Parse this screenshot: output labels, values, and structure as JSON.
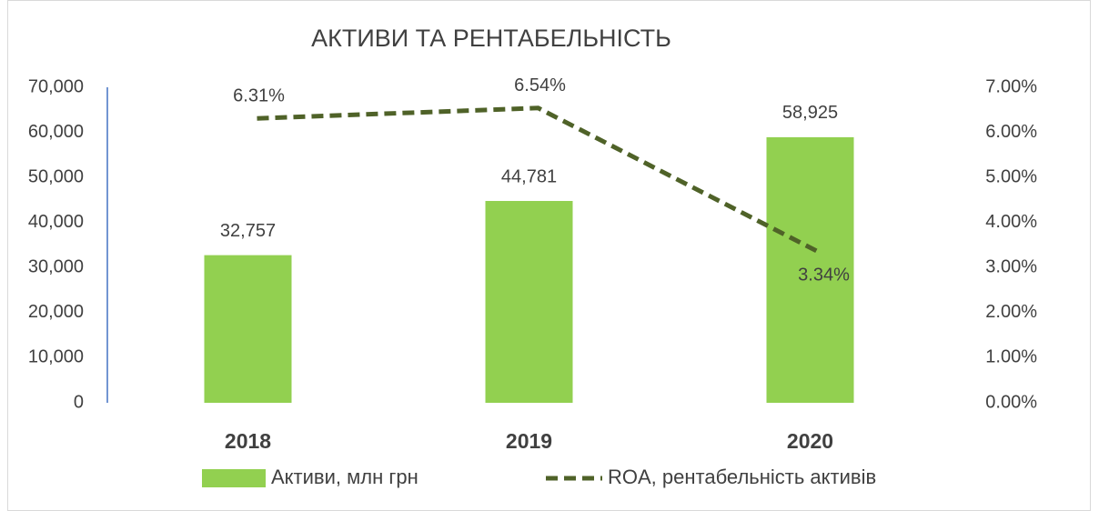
{
  "chart_data": {
    "type": "combo",
    "title": "АКТИВИ ТА РЕНТАБЕЛЬНІСТЬ",
    "categories": [
      "2018",
      "2019",
      "2020"
    ],
    "series": [
      {
        "name": "Активи, млн грн",
        "type": "bar",
        "color": "#92d050",
        "values": [
          32757,
          44781,
          58925
        ],
        "value_labels": [
          "32,757",
          "44,781",
          "58,925"
        ]
      },
      {
        "name": "ROA, рентабельність активів",
        "type": "line",
        "axis": "y2",
        "color": "#4f6228",
        "dashed": true,
        "values": [
          6.31,
          6.54,
          3.34
        ],
        "value_labels": [
          "6.31%",
          "6.54%",
          "3.34%"
        ]
      }
    ],
    "ylim": [
      0,
      70000
    ],
    "yticks": [
      0,
      {
        "value": 10000,
        "label": "10,000"
      },
      {
        "value": 20000,
        "label": "20,000"
      },
      {
        "value": 30000,
        "label": "30,000"
      },
      {
        "value": 40000,
        "label": "40,000"
      },
      {
        "value": 50000,
        "label": "50,000"
      },
      {
        "value": 60000,
        "label": "60,000"
      },
      {
        "value": 70000,
        "label": "70,000"
      }
    ],
    "y2lim": [
      0,
      7
    ],
    "y2ticks": [
      {
        "value": 0,
        "label": "0.00%"
      },
      {
        "value": 1,
        "label": "1.00%"
      },
      {
        "value": 2,
        "label": "2.00%"
      },
      {
        "value": 3,
        "label": "3.00%"
      },
      {
        "value": 4,
        "label": "4.00%"
      },
      {
        "value": 5,
        "label": "5.00%"
      },
      {
        "value": 6,
        "label": "6.00%"
      },
      {
        "value": 7,
        "label": "7.00%"
      }
    ],
    "legend": "bottom"
  }
}
